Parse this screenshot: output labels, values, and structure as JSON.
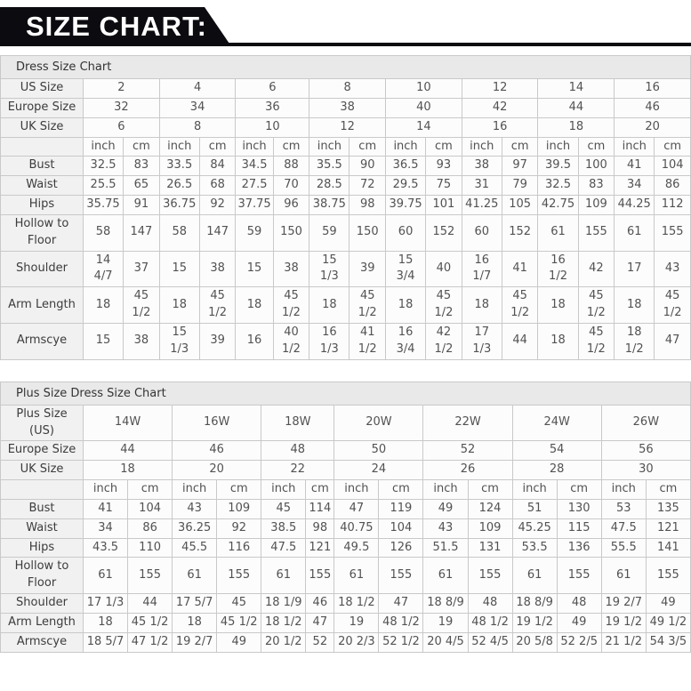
{
  "header": {
    "title": "SIZE CHART:"
  },
  "colors": {
    "banner_black": "#0b0b10",
    "band_gray": "#e9e9e9",
    "label_gray": "#f1f1f1",
    "cell_white": "#fcfcfc",
    "border_gray": "#c9c9c9"
  },
  "chart_data": [
    {
      "type": "table",
      "title": "Dress Size Chart",
      "units": [
        "inch",
        "cm"
      ],
      "size_rows": [
        {
          "label": "US Size",
          "values": [
            "2",
            "4",
            "6",
            "8",
            "10",
            "12",
            "14",
            "16"
          ]
        },
        {
          "label": "Europe Size",
          "values": [
            "32",
            "34",
            "36",
            "38",
            "40",
            "42",
            "44",
            "46"
          ]
        },
        {
          "label": "UK Size",
          "values": [
            "6",
            "8",
            "10",
            "12",
            "14",
            "16",
            "18",
            "20"
          ]
        }
      ],
      "measure_rows": [
        {
          "label": "Bust",
          "pairs": [
            [
              "32.5",
              "83"
            ],
            [
              "33.5",
              "84"
            ],
            [
              "34.5",
              "88"
            ],
            [
              "35.5",
              "90"
            ],
            [
              "36.5",
              "93"
            ],
            [
              "38",
              "97"
            ],
            [
              "39.5",
              "100"
            ],
            [
              "41",
              "104"
            ]
          ]
        },
        {
          "label": "Waist",
          "pairs": [
            [
              "25.5",
              "65"
            ],
            [
              "26.5",
              "68"
            ],
            [
              "27.5",
              "70"
            ],
            [
              "28.5",
              "72"
            ],
            [
              "29.5",
              "75"
            ],
            [
              "31",
              "79"
            ],
            [
              "32.5",
              "83"
            ],
            [
              "34",
              "86"
            ]
          ]
        },
        {
          "label": "Hips",
          "pairs": [
            [
              "35.75",
              "91"
            ],
            [
              "36.75",
              "92"
            ],
            [
              "37.75",
              "96"
            ],
            [
              "38.75",
              "98"
            ],
            [
              "39.75",
              "101"
            ],
            [
              "41.25",
              "105"
            ],
            [
              "42.75",
              "109"
            ],
            [
              "44.25",
              "112"
            ]
          ]
        },
        {
          "label": "Hollow to Floor",
          "pairs": [
            [
              "58",
              "147"
            ],
            [
              "58",
              "147"
            ],
            [
              "59",
              "150"
            ],
            [
              "59",
              "150"
            ],
            [
              "60",
              "152"
            ],
            [
              "60",
              "152"
            ],
            [
              "61",
              "155"
            ],
            [
              "61",
              "155"
            ]
          ]
        },
        {
          "label": "Shoulder",
          "pairs": [
            [
              "14 4/7",
              "37"
            ],
            [
              "15",
              "38"
            ],
            [
              "15",
              "38"
            ],
            [
              "15 1/3",
              "39"
            ],
            [
              "15 3/4",
              "40"
            ],
            [
              "16 1/7",
              "41"
            ],
            [
              "16 1/2",
              "42"
            ],
            [
              "17",
              "43"
            ]
          ]
        },
        {
          "label": "Arm Length",
          "pairs": [
            [
              "18",
              "45 1/2"
            ],
            [
              "18",
              "45 1/2"
            ],
            [
              "18",
              "45 1/2"
            ],
            [
              "18",
              "45 1/2"
            ],
            [
              "18",
              "45 1/2"
            ],
            [
              "18",
              "45 1/2"
            ],
            [
              "18",
              "45 1/2"
            ],
            [
              "18",
              "45 1/2"
            ]
          ]
        },
        {
          "label": "Armscye",
          "pairs": [
            [
              "15",
              "38"
            ],
            [
              "15 1/3",
              "39"
            ],
            [
              "16",
              "40 1/2"
            ],
            [
              "16 1/3",
              "41 1/2"
            ],
            [
              "16 3/4",
              "42 1/2"
            ],
            [
              "17 1/3",
              "44"
            ],
            [
              "18",
              "45 1/2"
            ],
            [
              "18 1/2",
              "47"
            ]
          ]
        }
      ]
    },
    {
      "type": "table",
      "title": "Plus Size Dress Size Chart",
      "units": [
        "inch",
        "cm"
      ],
      "size_rows": [
        {
          "label": "Plus Size (US)",
          "values": [
            "14W",
            "16W",
            "18W",
            "20W",
            "22W",
            "24W",
            "26W"
          ]
        },
        {
          "label": "Europe Size",
          "values": [
            "44",
            "46",
            "48",
            "50",
            "52",
            "54",
            "56"
          ]
        },
        {
          "label": "UK Size",
          "values": [
            "18",
            "20",
            "22",
            "24",
            "26",
            "28",
            "30"
          ]
        }
      ],
      "measure_rows": [
        {
          "label": "Bust",
          "pairs": [
            [
              "41",
              "104"
            ],
            [
              "43",
              "109"
            ],
            [
              "45",
              "114"
            ],
            [
              "47",
              "119"
            ],
            [
              "49",
              "124"
            ],
            [
              "51",
              "130"
            ],
            [
              "53",
              "135"
            ]
          ]
        },
        {
          "label": "Waist",
          "pairs": [
            [
              "34",
              "86"
            ],
            [
              "36.25",
              "92"
            ],
            [
              "38.5",
              "98"
            ],
            [
              "40.75",
              "104"
            ],
            [
              "43",
              "109"
            ],
            [
              "45.25",
              "115"
            ],
            [
              "47.5",
              "121"
            ]
          ]
        },
        {
          "label": "Hips",
          "pairs": [
            [
              "43.5",
              "110"
            ],
            [
              "45.5",
              "116"
            ],
            [
              "47.5",
              "121"
            ],
            [
              "49.5",
              "126"
            ],
            [
              "51.5",
              "131"
            ],
            [
              "53.5",
              "136"
            ],
            [
              "55.5",
              "141"
            ]
          ]
        },
        {
          "label": "Hollow to Floor",
          "pairs": [
            [
              "61",
              "155"
            ],
            [
              "61",
              "155"
            ],
            [
              "61",
              "155"
            ],
            [
              "61",
              "155"
            ],
            [
              "61",
              "155"
            ],
            [
              "61",
              "155"
            ],
            [
              "61",
              "155"
            ]
          ]
        },
        {
          "label": "Shoulder",
          "pairs": [
            [
              "17 1/3",
              "44"
            ],
            [
              "17 5/7",
              "45"
            ],
            [
              "18 1/9",
              "46"
            ],
            [
              "18 1/2",
              "47"
            ],
            [
              "18 8/9",
              "48"
            ],
            [
              "18 8/9",
              "48"
            ],
            [
              "19 2/7",
              "49"
            ]
          ]
        },
        {
          "label": "Arm Length",
          "pairs": [
            [
              "18",
              "45 1/2"
            ],
            [
              "18",
              "45 1/2"
            ],
            [
              "18 1/2",
              "47"
            ],
            [
              "19",
              "48 1/2"
            ],
            [
              "19",
              "48 1/2"
            ],
            [
              "19 1/2",
              "49"
            ],
            [
              "19 1/2",
              "49 1/2"
            ]
          ]
        },
        {
          "label": "Armscye",
          "pairs": [
            [
              "18 5/7",
              "47 1/2"
            ],
            [
              "19 2/7",
              "49"
            ],
            [
              "20 1/2",
              "52"
            ],
            [
              "20 2/3",
              "52 1/2"
            ],
            [
              "20 4/5",
              "52 4/5"
            ],
            [
              "20 5/8",
              "52 2/5"
            ],
            [
              "21 1/2",
              "54 3/5"
            ]
          ]
        }
      ]
    }
  ]
}
